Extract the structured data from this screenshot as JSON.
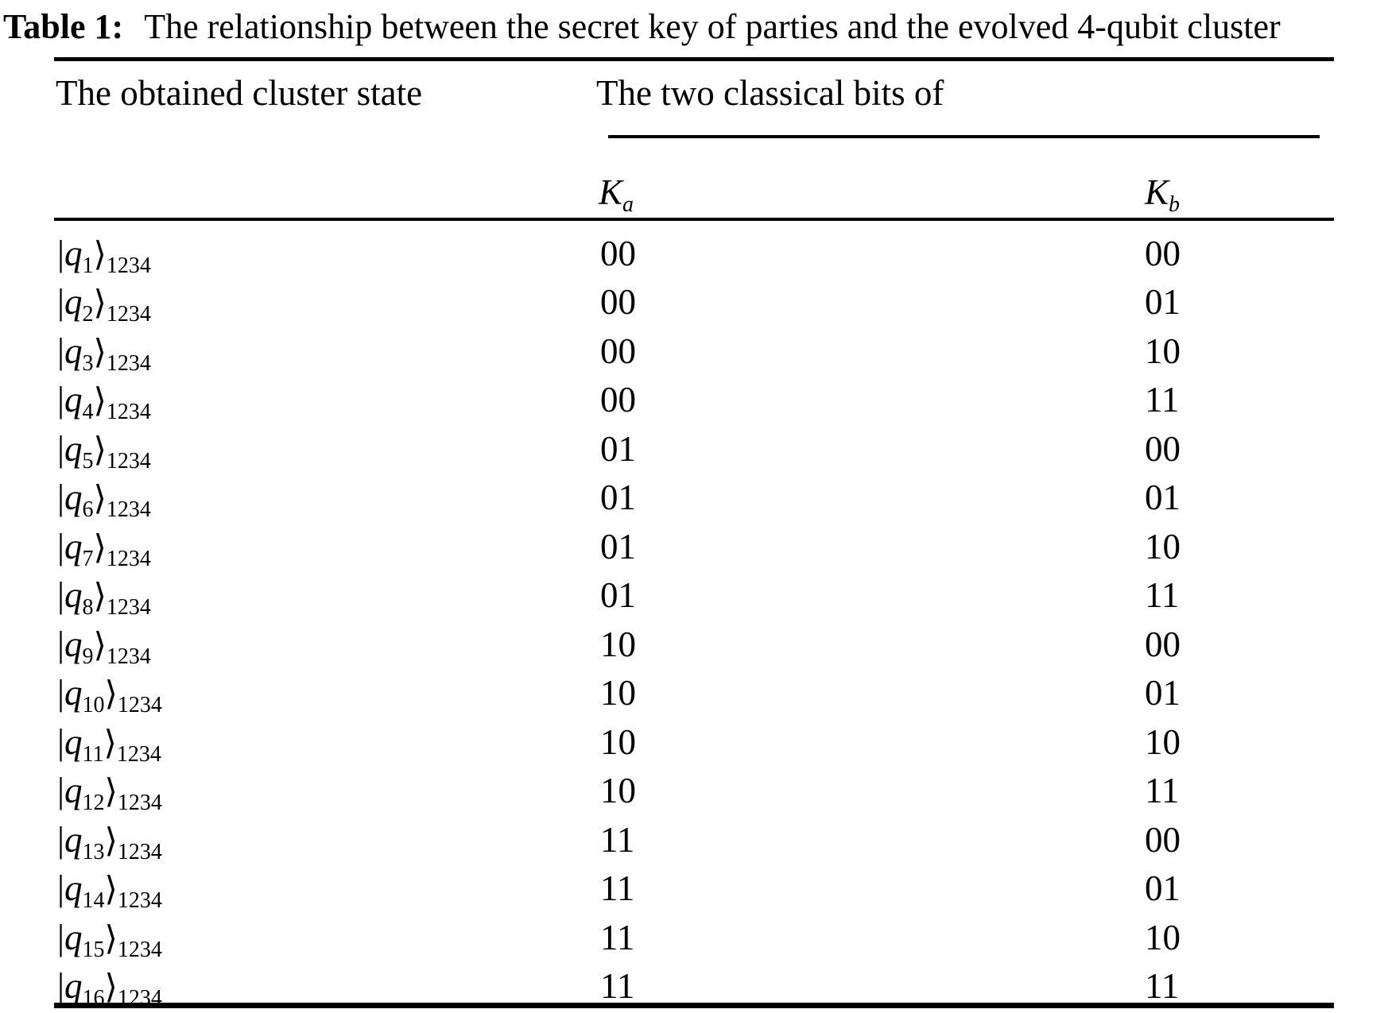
{
  "title": {
    "label": "Table 1:",
    "text": "The relationship between the secret key of parties and the evolved 4-qubit cluster"
  },
  "table": {
    "columns": {
      "state_header": "The obtained cluster state",
      "group_header": "The two classical bits of",
      "ka": {
        "base": "K",
        "sub": "a"
      },
      "kb": {
        "base": "K",
        "sub": "b"
      }
    },
    "symbols": {
      "bar": "|",
      "rangle": "⟩"
    },
    "rows": [
      {
        "q": "q",
        "q_sub": "1",
        "group_sub": "1234",
        "ka": "00",
        "kb": "00"
      },
      {
        "q": "q",
        "q_sub": "2",
        "group_sub": "1234",
        "ka": "00",
        "kb": "01"
      },
      {
        "q": "q",
        "q_sub": "3",
        "group_sub": "1234",
        "ka": "00",
        "kb": "10"
      },
      {
        "q": "q",
        "q_sub": "4",
        "group_sub": "1234",
        "ka": "00",
        "kb": "11"
      },
      {
        "q": "q",
        "q_sub": "5",
        "group_sub": "1234",
        "ka": "01",
        "kb": "00"
      },
      {
        "q": "q",
        "q_sub": "6",
        "group_sub": "1234",
        "ka": "01",
        "kb": "01"
      },
      {
        "q": "q",
        "q_sub": "7",
        "group_sub": "1234",
        "ka": "01",
        "kb": "10"
      },
      {
        "q": "q",
        "q_sub": "8",
        "group_sub": "1234",
        "ka": "01",
        "kb": "11"
      },
      {
        "q": "q",
        "q_sub": "9",
        "group_sub": "1234",
        "ka": "10",
        "kb": "00"
      },
      {
        "q": "q",
        "q_sub": "10",
        "group_sub": "1234",
        "ka": "10",
        "kb": "01"
      },
      {
        "q": "q",
        "q_sub": "11",
        "group_sub": "1234",
        "ka": "10",
        "kb": "10"
      },
      {
        "q": "q",
        "q_sub": "12",
        "group_sub": "1234",
        "ka": "10",
        "kb": "11"
      },
      {
        "q": "q",
        "q_sub": "13",
        "group_sub": "1234",
        "ka": "11",
        "kb": "00"
      },
      {
        "q": "q",
        "q_sub": "14",
        "group_sub": "1234",
        "ka": "11",
        "kb": "01"
      },
      {
        "q": "q",
        "q_sub": "15",
        "group_sub": "1234",
        "ka": "11",
        "kb": "10"
      },
      {
        "q": "q",
        "q_sub": "16",
        "group_sub": "1234",
        "ka": "11",
        "kb": "11"
      }
    ]
  },
  "colors": {
    "text": "#000000",
    "background": "#ffffff",
    "rule": "#000000"
  }
}
